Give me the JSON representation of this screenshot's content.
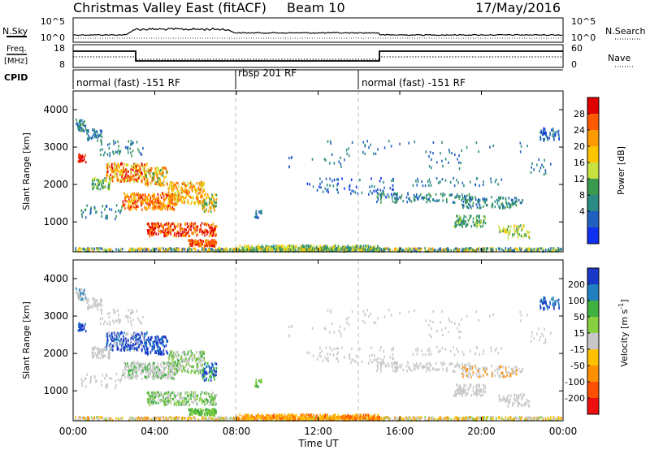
{
  "header": {
    "station": "Christmas Valley East (fitACF)",
    "beam": "Beam 10",
    "date": "17/May/2016"
  },
  "chart_data": [
    {
      "name": "noise-panel",
      "type": "line",
      "left_label": "N.Sky",
      "right_label": "N.Search",
      "left_ticks": [
        "10^5",
        "10^0"
      ],
      "right_ticks": [
        "10^5",
        "10^0"
      ]
    },
    {
      "name": "freq-nave-panel",
      "type": "line",
      "left_label": "Freq.",
      "left_unit": "[MHz]",
      "right_label": "Nave",
      "left_ticks": [
        18,
        8
      ],
      "right_ticks": [
        60,
        0
      ]
    },
    {
      "name": "cpid-panel",
      "label": "CPID",
      "segments": [
        {
          "text": "normal (fast) -151 RF",
          "start_h": 0,
          "end_h": 8
        },
        {
          "text": "rbsp 201 RF",
          "start_h": 8,
          "end_h": 14
        },
        {
          "text": "normal (fast) -151 RF",
          "start_h": 14,
          "end_h": 24
        }
      ]
    },
    {
      "name": "power-panel",
      "type": "heatmap",
      "ylabel": "Slant Range [km]",
      "yticks": [
        1000,
        2000,
        3000,
        4000
      ],
      "ylim": [
        200,
        4500
      ],
      "colorbar_label": "Power [dB]",
      "colorbar_ticks": [
        "28",
        "24",
        "20",
        "16",
        "12",
        "8",
        "4"
      ],
      "colorbar_colors": [
        "#e00000",
        "#ff5a00",
        "#ff9a00",
        "#ffc400",
        "#c8e040",
        "#3a9a50",
        "#2a8a84",
        "#2060c0",
        "#1030f0"
      ]
    },
    {
      "name": "velocity-panel",
      "type": "heatmap",
      "ylabel": "Slant Range [km]",
      "yticks": [
        1000,
        2000,
        3000,
        4000
      ],
      "ylim": [
        200,
        4500
      ],
      "colorbar_label": "Velocity [m s",
      "colorbar_label_sup": "-1",
      "colorbar_label_end": "]",
      "colorbar_ticks": [
        "200",
        "100",
        "50",
        "15",
        "-15",
        "-50",
        "-100",
        "-200"
      ],
      "colorbar_colors": [
        "#1a38c8",
        "#2080c0",
        "#40b040",
        "#88d040",
        "#c8c8c8",
        "#ffc000",
        "#ff9000",
        "#ff5000",
        "#ee1010"
      ]
    }
  ],
  "xaxis": {
    "label": "Time UT",
    "ticks": [
      "00:00",
      "04:00",
      "08:00",
      "12:00",
      "16:00",
      "20:00",
      "00:00"
    ],
    "xlim_hours": [
      0,
      24
    ]
  }
}
